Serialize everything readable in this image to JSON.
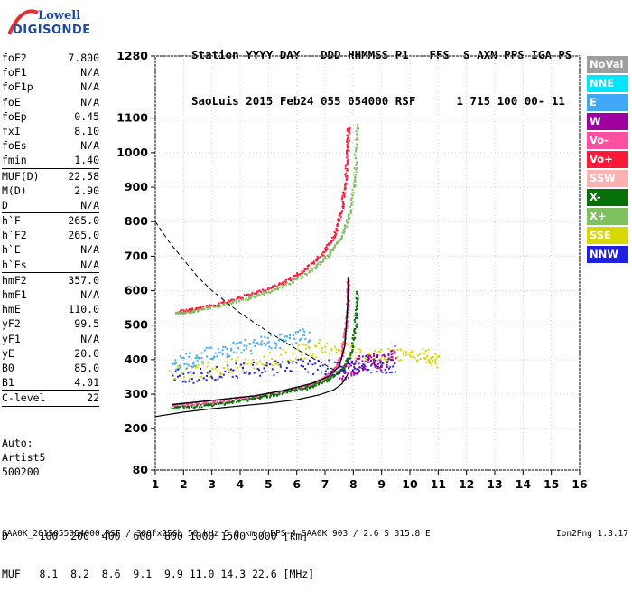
{
  "logo": {
    "line1": "Lowell",
    "line2": "DIGISONDE"
  },
  "header": {
    "line1": "Station YYYY DAY   DDD HHMMSS P1   FFS  S AXN PPS IGA PS",
    "line2": "SaoLuis 2015 Feb24 055 054000 RSF      1 715 100 00- 11"
  },
  "params": [
    {
      "label": "foF2",
      "value": "7.800"
    },
    {
      "label": "foF1",
      "value": "N/A"
    },
    {
      "label": "foF1p",
      "value": "N/A"
    },
    {
      "label": "foE",
      "value": "N/A"
    },
    {
      "label": "foEp",
      "value": "0.45"
    },
    {
      "label": "fxI",
      "value": "8.10"
    },
    {
      "label": "foEs",
      "value": "N/A"
    },
    {
      "label": "fmin",
      "value": "1.40"
    },
    {
      "sep": true
    },
    {
      "label": "MUF(D)",
      "value": "22.58"
    },
    {
      "label": "M(D)",
      "value": "2.90"
    },
    {
      "label": "D",
      "value": "N/A"
    },
    {
      "sep": true
    },
    {
      "label": "h`F",
      "value": "265.0"
    },
    {
      "label": "h`F2",
      "value": "265.0"
    },
    {
      "label": "h`E",
      "value": "N/A"
    },
    {
      "label": "h`Es",
      "value": "N/A"
    },
    {
      "sep": true
    },
    {
      "label": "hmF2",
      "value": "357.0"
    },
    {
      "label": "hmF1",
      "value": "N/A"
    },
    {
      "label": "hmE",
      "value": "110.0"
    },
    {
      "label": "yF2",
      "value": "99.5"
    },
    {
      "label": "yF1",
      "value": "N/A"
    },
    {
      "label": "yE",
      "value": "20.0"
    },
    {
      "label": "B0",
      "value": "85.0"
    },
    {
      "label": "B1",
      "value": "4.01"
    },
    {
      "sep": true
    },
    {
      "label": "C-level",
      "value": "22"
    },
    {
      "sep": true
    }
  ],
  "auto": {
    "line1": "Auto:",
    "line2": "Artist5",
    "line3": "500200"
  },
  "legend": [
    {
      "label": "NoVal",
      "color": "#9e9e9e"
    },
    {
      "label": "NNE",
      "color": "#00e5ff"
    },
    {
      "label": "E",
      "color": "#3fa9f5"
    },
    {
      "label": "W",
      "color": "#a000a0"
    },
    {
      "label": "Vo-",
      "color": "#ff4fa0"
    },
    {
      "label": "Vo+",
      "color": "#ff1a3a"
    },
    {
      "label": "SSW",
      "color": "#ffb0b0"
    },
    {
      "label": "X-",
      "color": "#087008"
    },
    {
      "label": "X+",
      "color": "#7fc060"
    },
    {
      "label": "SSE",
      "color": "#d8d800"
    },
    {
      "label": "NNW",
      "color": "#2020e0"
    }
  ],
  "muf_table": {
    "line1": "D     100  200  400  600  800 1000 1500 3000 [km]",
    "line2": "MUF   8.1  8.2  8.6  9.1  9.9 11.0 14.3 22.6 [MHz]"
  },
  "footer": {
    "left": "SAA0K_2015055054000.RSF / 300fx256h 50 kHz 5.0 km / DPS-4 SAA0K 903 / 2.6 S 315.8 E",
    "right": "Ion2Png 1.3.17"
  },
  "chart_data": {
    "type": "scatter",
    "title": "",
    "xlabel": "",
    "ylabel": "",
    "xlim": [
      1,
      16
    ],
    "ylim": [
      80,
      1280
    ],
    "x_ticks": [
      1,
      2,
      3,
      4,
      5,
      6,
      7,
      8,
      9,
      10,
      11,
      12,
      13,
      14,
      15,
      16
    ],
    "y_ticks": [
      80,
      200,
      300,
      400,
      500,
      600,
      700,
      800,
      900,
      1000,
      1100,
      1280
    ],
    "grid": true,
    "legend_position": "right",
    "series": [
      {
        "name": "Vo-",
        "color": "#ff4fa0",
        "points": [
          [
            1.6,
            270
          ],
          [
            2.5,
            275
          ],
          [
            3.5,
            285
          ],
          [
            4.5,
            295
          ],
          [
            5.5,
            310
          ],
          [
            6.3,
            325
          ],
          [
            6.9,
            345
          ],
          [
            7.3,
            370
          ],
          [
            7.55,
            410
          ],
          [
            7.7,
            480
          ],
          [
            7.78,
            560
          ],
          [
            7.8,
            640
          ]
        ]
      },
      {
        "name": "Vo+",
        "color": "#ff1a3a",
        "points": [
          [
            1.7,
            540
          ],
          [
            2.5,
            550
          ],
          [
            3.5,
            570
          ],
          [
            4.5,
            595
          ],
          [
            5.5,
            625
          ],
          [
            6.3,
            665
          ],
          [
            6.9,
            710
          ],
          [
            7.3,
            760
          ],
          [
            7.55,
            830
          ],
          [
            7.7,
            920
          ],
          [
            7.78,
            1010
          ],
          [
            7.8,
            1080
          ]
        ]
      },
      {
        "name": "X-",
        "color": "#087008",
        "points": [
          [
            1.6,
            262
          ],
          [
            2.5,
            267
          ],
          [
            3.5,
            277
          ],
          [
            4.5,
            290
          ],
          [
            5.5,
            305
          ],
          [
            6.4,
            322
          ],
          [
            7.1,
            345
          ],
          [
            7.6,
            375
          ],
          [
            7.9,
            420
          ],
          [
            8.05,
            500
          ],
          [
            8.12,
            600
          ]
        ]
      },
      {
        "name": "X+",
        "color": "#7fc060",
        "points": [
          [
            1.7,
            535
          ],
          [
            2.5,
            545
          ],
          [
            3.5,
            562
          ],
          [
            4.5,
            585
          ],
          [
            5.5,
            615
          ],
          [
            6.4,
            655
          ],
          [
            7.1,
            705
          ],
          [
            7.6,
            765
          ],
          [
            7.9,
            840
          ],
          [
            8.05,
            950
          ],
          [
            8.12,
            1090
          ]
        ]
      },
      {
        "name": "SSE",
        "color": "#d8d800",
        "points": [
          [
            1.5,
            360
          ],
          [
            3,
            375
          ],
          [
            4.5,
            395
          ],
          [
            6,
            420
          ],
          [
            7,
            440
          ],
          [
            8.5,
            420
          ],
          [
            9.5,
            410
          ],
          [
            10.5,
            415
          ],
          [
            11,
            400
          ]
        ]
      },
      {
        "name": "E",
        "color": "#3fa9f5",
        "points": [
          [
            1.6,
            390
          ],
          [
            2.5,
            410
          ],
          [
            3.5,
            430
          ],
          [
            4.5,
            445
          ],
          [
            5.5,
            460
          ],
          [
            6.5,
            470
          ]
        ]
      },
      {
        "name": "NNW",
        "color": "#2020e0",
        "points": [
          [
            1.6,
            350
          ],
          [
            3,
            360
          ],
          [
            4.5,
            375
          ],
          [
            6,
            385
          ],
          [
            7.5,
            380
          ],
          [
            8.5,
            390
          ],
          [
            9.5,
            380
          ]
        ]
      },
      {
        "name": "W",
        "color": "#a000a0",
        "points": [
          [
            7.5,
            360
          ],
          [
            8,
            380
          ],
          [
            8.5,
            400
          ],
          [
            9,
            390
          ],
          [
            9.5,
            420
          ]
        ]
      }
    ],
    "profile_curve": [
      [
        1,
        235
      ],
      [
        2,
        248
      ],
      [
        3,
        258
      ],
      [
        4,
        266
      ],
      [
        5,
        274
      ],
      [
        6,
        284
      ],
      [
        6.8,
        298
      ],
      [
        7.3,
        312
      ],
      [
        7.6,
        330
      ],
      [
        7.75,
        350
      ],
      [
        7.8,
        357
      ]
    ],
    "dashed_curve": [
      [
        1,
        800
      ],
      [
        1.5,
        740
      ],
      [
        2,
        690
      ],
      [
        2.5,
        640
      ],
      [
        3,
        600
      ],
      [
        4,
        535
      ],
      [
        5,
        480
      ],
      [
        6,
        430
      ],
      [
        7,
        385
      ],
      [
        7.6,
        357
      ]
    ],
    "fit_curve": [
      [
        1.6,
        270
      ],
      [
        3,
        282
      ],
      [
        4.5,
        295
      ],
      [
        5.5,
        310
      ],
      [
        6.5,
        330
      ],
      [
        7.1,
        350
      ],
      [
        7.5,
        380
      ],
      [
        7.7,
        440
      ],
      [
        7.8,
        560
      ],
      [
        7.82,
        640
      ]
    ]
  }
}
